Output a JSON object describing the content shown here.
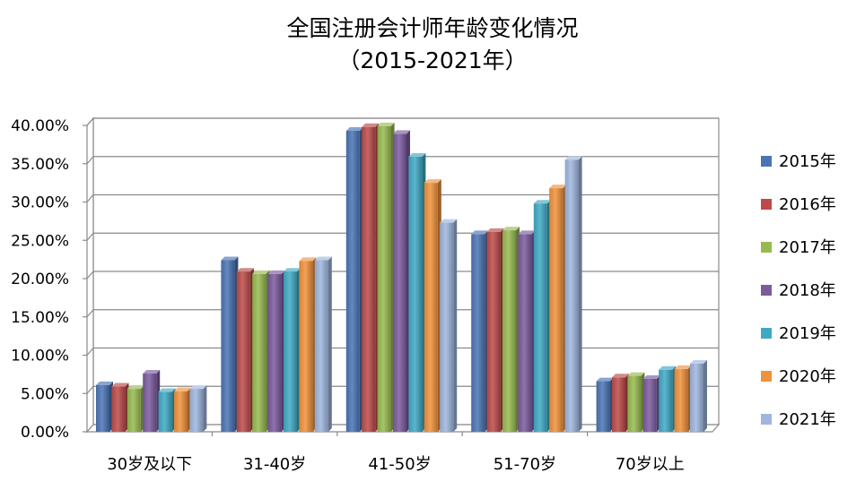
{
  "chart_data": {
    "type": "bar",
    "title": "全国注册会计师年龄变化情况",
    "subtitle": "（2015-2021年）",
    "categories": [
      "30岁及以下",
      "31-40岁",
      "41-50岁",
      "51-70岁",
      "70岁以上"
    ],
    "y_ticks": [
      "0.00%",
      "5.00%",
      "10.00%",
      "15.00%",
      "20.00%",
      "25.00%",
      "30.00%",
      "35.00%",
      "40.00%"
    ],
    "ylim": [
      0,
      40
    ],
    "grid": true,
    "legend_position": "right",
    "series": [
      {
        "name": "2015年",
        "color": "#4a74b4",
        "values": [
          6.1,
          22.4,
          39.3,
          25.8,
          6.6
        ]
      },
      {
        "name": "2016年",
        "color": "#bc4b49",
        "values": [
          5.9,
          20.9,
          39.8,
          26.1,
          7.1
        ]
      },
      {
        "name": "2017年",
        "color": "#97ba50",
        "values": [
          5.6,
          20.6,
          39.9,
          26.3,
          7.3
        ]
      },
      {
        "name": "2018年",
        "color": "#7b5a9e",
        "values": [
          7.6,
          20.6,
          38.9,
          25.8,
          6.9
        ]
      },
      {
        "name": "2019年",
        "color": "#3fa9c4",
        "values": [
          5.2,
          20.9,
          35.9,
          29.8,
          8.1
        ]
      },
      {
        "name": "2020年",
        "color": "#f0913b",
        "values": [
          5.3,
          22.3,
          32.5,
          31.8,
          8.2
        ]
      },
      {
        "name": "2021年",
        "color": "#9fb6de",
        "values": [
          5.6,
          22.4,
          27.3,
          35.5,
          8.9
        ]
      }
    ]
  }
}
